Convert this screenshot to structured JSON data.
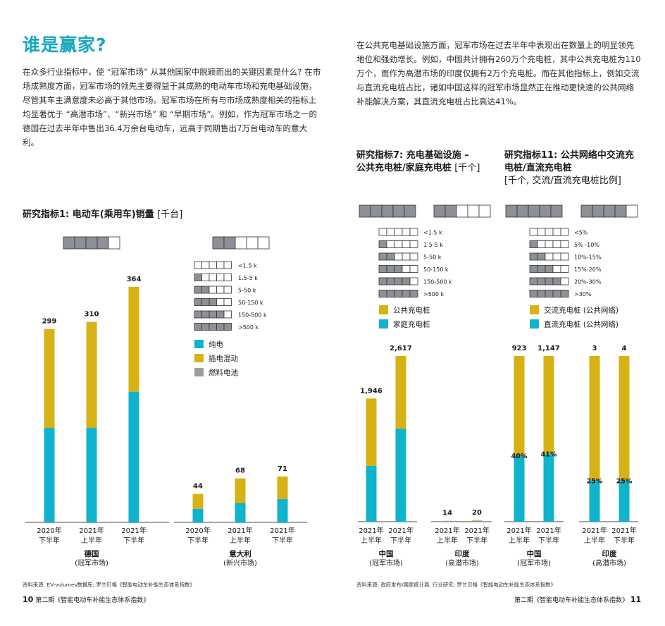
{
  "colors": {
    "accent": "#1aa7c1",
    "bev": "#10b3cc",
    "phev": "#d6b215",
    "fcev": "#9a9da2",
    "maturity_fill": "#8d9197",
    "axis": "#4a4a4a"
  },
  "left": {
    "heading": "谁是赢家?",
    "paragraph": "在众多行业指标中，使 “冠军市场” 从其他国家中脱颖而出的关键因素是什么? 在市场成熟度方面，冠军市场的领先主要得益于其成熟的电动车市场和充电基础设施，尽管其车主满意度未必高于其他市场。冠军市场在所有与市场成熟度相关的指标上均显著优于 “高潜市场”、“新兴市场” 和 “早期市场”。例如，作为冠军市场之一的德国在过去半年中售出36.4万余台电动车，远高于同期售出7万台电动车的意大利。",
    "chart_title": "研究指标1: 电动车(乘用车)销量",
    "chart_unit": "[千台]",
    "source": "资料来源: EV-volumes数据库; 罗兰贝格《智能电动车补能生态体系指数》",
    "page_number": "10",
    "footer_title": "第二期《智能电动车补能生态体系指数》"
  },
  "right": {
    "paragraph": "在公共充电基础设施方面，冠军市场在过去半年中表现出在数量上的明显领先地位和强劲增长。例如，中国共计拥有260万个充电桩，其中公共充电桩为110万个，而作为高潜市场的印度仅拥有2万个充电桩。而在其他指标上，例如交流与直流充电桩占比，诸如中国这样的冠军市场显然正在推动更快速的公共网络补能解决方案，其直流充电桩占比高达41%。",
    "chart7_title_1": "研究指标7: 充电基础设施 –",
    "chart7_title_2": "公共充电桩/家庭充电桩",
    "chart7_unit": "[千个]",
    "chart11_title_1": "研究指标11: 公共网络中交流充",
    "chart11_title_2": "电桩/直流充电桩",
    "chart11_unit": "[千个, 交流/直流充电桩比例]",
    "source": "资料来源: 政府发布/国家统计局, 行业研究; 罗兰贝格《智能电动车补能生态体系指数》",
    "page_number": "11",
    "footer_title": "第二期《智能电动车补能生态体系指数》"
  },
  "chart_data": [
    {
      "type": "bar",
      "title": "研究指标1: 电动车(乘用车)销量",
      "unit": "[千台]",
      "legend": {
        "maturity_levels": [
          "<1.5 k",
          "1.5-5 k",
          "5-50 k",
          "50-150 k",
          "150-500 k",
          ">500 k"
        ],
        "series": [
          "纯电",
          "插电混动",
          "燃料电池"
        ]
      },
      "groups": [
        {
          "name": "德国",
          "sub": "(冠军市场)",
          "maturity_filled": 4,
          "categories": [
            "2020年下半年",
            "2021年上半年",
            "2021年下半年"
          ],
          "totals": [
            "299",
            "310",
            "364"
          ],
          "series": [
            {
              "name": "纯电",
              "values": [
                146,
                146,
                202
              ]
            },
            {
              "name": "插电混动",
              "values": [
                153,
                164,
                162
              ]
            }
          ]
        },
        {
          "name": "意大利",
          "sub": "(新兴市场)",
          "maturity_filled": 2,
          "categories": [
            "2020年下半年",
            "2021年上半年",
            "2021年下半年"
          ],
          "totals": [
            "44",
            "68",
            "71"
          ],
          "series": [
            {
              "name": "纯电",
              "values": [
                21,
                30,
                36
              ]
            },
            {
              "name": "插电混动",
              "values": [
                23,
                38,
                35
              ]
            }
          ]
        }
      ],
      "ylim": [
        0,
        364
      ]
    },
    {
      "type": "bar",
      "title": "研究指标7: 充电基础设施 – 公共充电桩/家庭充电桩",
      "unit": "[千个]",
      "legend": {
        "maturity_levels": [
          "<1.5 k",
          "1.5-5 k",
          "5-50 k",
          "50-150 k",
          "150-500 k",
          ">500 k"
        ],
        "series": [
          "公共充电桩",
          "家庭充电桩"
        ]
      },
      "groups": [
        {
          "name": "中国",
          "sub": "(冠军市场)",
          "maturity_filled": 5,
          "categories": [
            "2021年上半年",
            "2021年下半年"
          ],
          "totals": [
            "1,946",
            "2,617"
          ],
          "series": [
            {
              "name": "家庭充电桩",
              "values": [
                881,
                1471
              ]
            },
            {
              "name": "公共充电桩",
              "values": [
                1065,
                1146
              ]
            }
          ]
        },
        {
          "name": "印度",
          "sub": "(高潜市场)",
          "maturity_filled": 2,
          "categories": [
            "2021年上半年",
            "2021年下半年"
          ],
          "totals": [
            "14",
            "20"
          ],
          "series": [
            {
              "name": "家庭充电桩",
              "values": [
                7,
                10
              ]
            },
            {
              "name": "公共充电桩",
              "values": [
                7,
                10
              ]
            }
          ]
        }
      ],
      "ylim": [
        0,
        2617
      ]
    },
    {
      "type": "bar",
      "title": "研究指标11: 公共网络中交流充电桩/直流充电桩",
      "unit": "[千个, 交流/直流充电桩比例]",
      "legend": {
        "maturity_levels": [
          "<5%",
          "5% -10%",
          "10%-15%",
          "15%-20%",
          "20%-30%",
          ">30%"
        ],
        "series": [
          "交流充电桩 (公共网络)",
          "直流充电桩 (公共网络)"
        ]
      },
      "groups": [
        {
          "name": "中国",
          "sub": "(冠军市场)",
          "maturity_filled": 5,
          "categories": [
            "2021年上半年",
            "2021年下半年"
          ],
          "totals": [
            "923",
            "1,147"
          ],
          "series": [
            {
              "name": "直流充电桩 (公共网络)",
              "values": [
                40,
                41
              ]
            },
            {
              "name": "交流充电桩 (公共网络)",
              "values": [
                60,
                59
              ]
            }
          ],
          "dc_labels": [
            "40%",
            "41%"
          ]
        },
        {
          "name": "印度",
          "sub": "(高潜市场)",
          "maturity_filled": 4,
          "categories": [
            "2021年上半年",
            "2021年下半年"
          ],
          "totals": [
            "3",
            "4"
          ],
          "series": [
            {
              "name": "直流充电桩 (公共网络)",
              "values": [
                25,
                25
              ]
            },
            {
              "name": "交流充电桩 (公共网络)",
              "values": [
                75,
                75
              ]
            }
          ],
          "dc_labels": [
            "25%",
            "25%"
          ]
        }
      ],
      "ylim": [
        0,
        100
      ]
    }
  ]
}
